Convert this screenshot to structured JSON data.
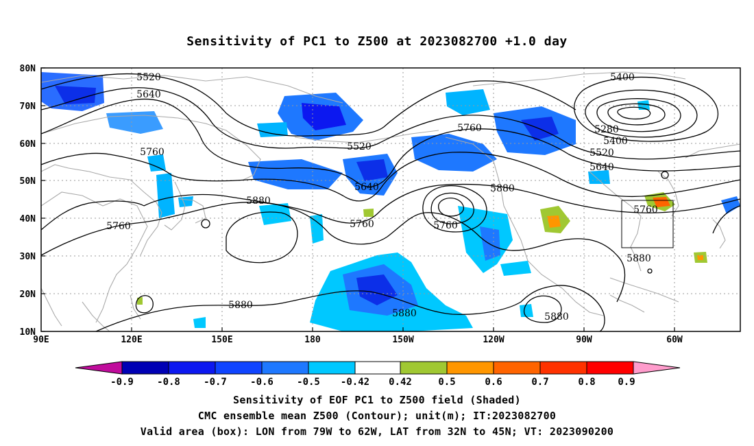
{
  "title": "Sensitivity of PC1 to Z500 at 2023082700 +1.0 day",
  "map": {
    "lat_ticks": [
      "80N",
      "70N",
      "60N",
      "50N",
      "40N",
      "30N",
      "20N",
      "10N"
    ],
    "lon_ticks": [
      "90E",
      "120E",
      "150E",
      "180",
      "150W",
      "120W",
      "90W",
      "60W"
    ],
    "lon_range": [
      90,
      322
    ],
    "lat_range": [
      10,
      80
    ],
    "grid": "dotted",
    "coastline_color": "#aaaaaa",
    "contour_color": "#000000",
    "contour_labels": [
      "5520",
      "5640",
      "5760",
      "5400",
      "5280",
      "5400",
      "5520",
      "5640",
      "5760",
      "5520",
      "5640",
      "5760",
      "5880",
      "5880",
      "5760",
      "5760",
      "5760",
      "5880",
      "5880",
      "5880",
      "5880",
      "5760"
    ],
    "valid_box": {
      "lon": [
        -79,
        -62
      ],
      "lat": [
        32,
        45
      ]
    }
  },
  "colorbar": {
    "labels": [
      "-0.9",
      "-0.8",
      "-0.7",
      "-0.6",
      "-0.5",
      "-0.42",
      "0.42",
      "0.5",
      "0.6",
      "0.7",
      "0.8",
      "0.9"
    ],
    "colors": [
      "#c00c9c",
      "#0000b4",
      "#0c18f0",
      "#0f44ff",
      "#1e78ff",
      "#00c8ff",
      "#ffffff",
      "#a0c832",
      "#ff9600",
      "#ff6400",
      "#ff3200",
      "#ff0000",
      "#ff9ccc"
    ]
  },
  "caption": {
    "line1": "Sensitivity of EOF PC1 to Z500 field (Shaded)",
    "line2": "CMC ensemble mean Z500 (Contour); unit(m); IT:2023082700",
    "line3": "Valid area (box): LON from 79W to 62W, LAT from 32N to 45N; VT: 2023090200"
  }
}
